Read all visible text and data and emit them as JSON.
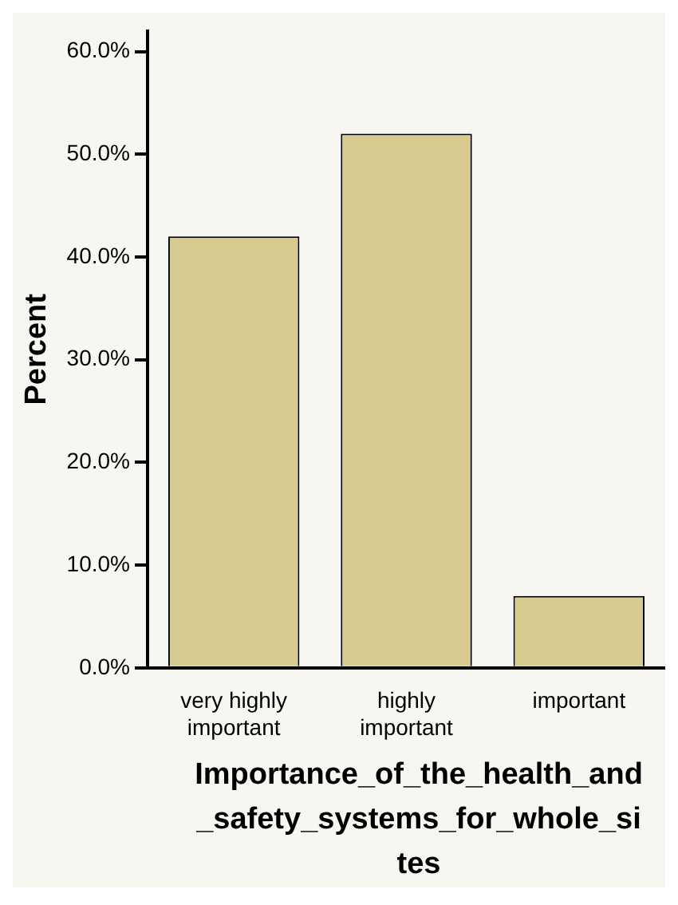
{
  "chart_data": {
    "type": "bar",
    "xlabel": "Importance_of_the_health_and_safety_systems_for_whole_sites",
    "ylabel": "Percent",
    "categories": [
      "very highly important",
      "highly important",
      "important"
    ],
    "values": [
      42.0,
      52.0,
      7.0
    ],
    "color": "#d8cb8f",
    "ylim": [
      0,
      62
    ],
    "yticks": [
      {
        "value": 0,
        "label": "0.0%"
      },
      {
        "value": 10,
        "label": "10.0%"
      },
      {
        "value": 20,
        "label": "20.0%"
      },
      {
        "value": 30,
        "label": "30.0%"
      },
      {
        "value": 40,
        "label": "40.0%"
      },
      {
        "value": 50,
        "label": "50.0%"
      },
      {
        "value": 60,
        "label": "60.0%"
      }
    ],
    "grid": false,
    "legend": false
  }
}
